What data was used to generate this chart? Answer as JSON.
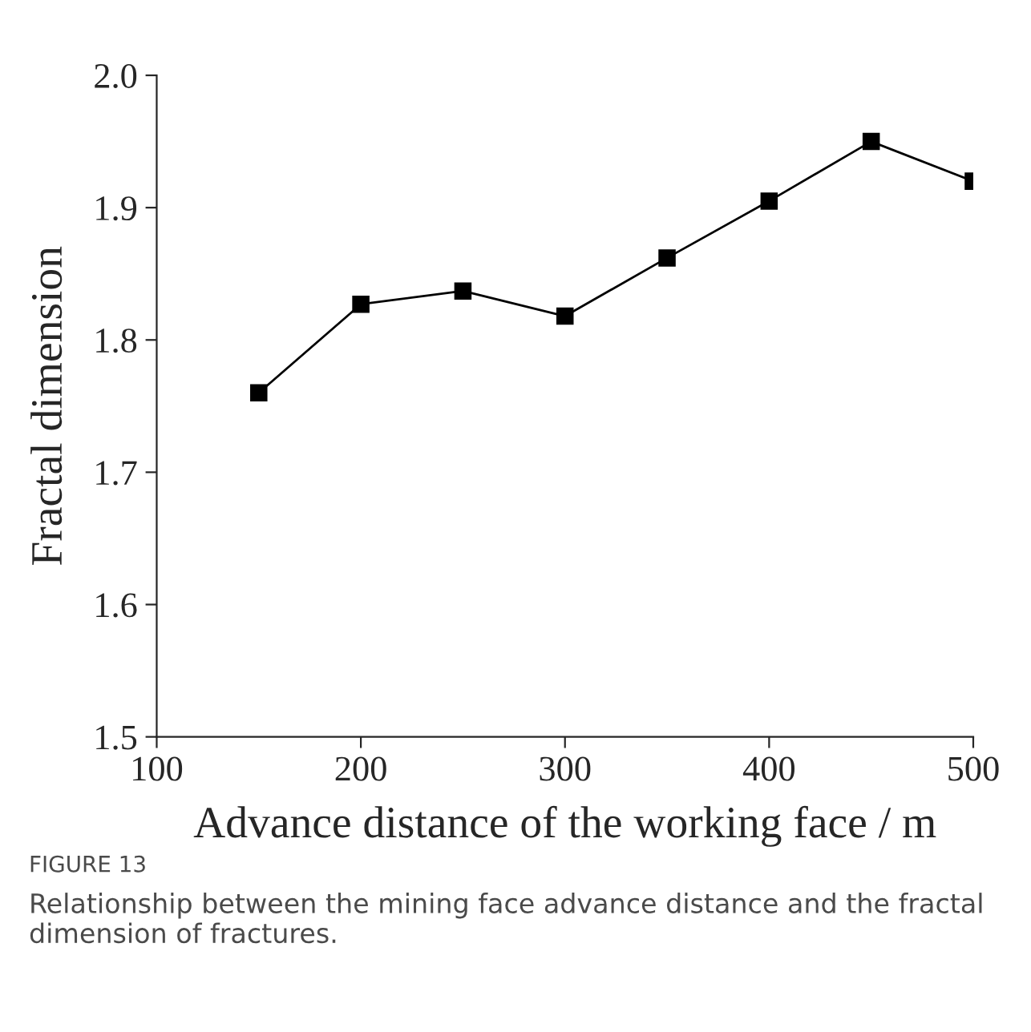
{
  "chart_data": {
    "type": "line",
    "xlabel": "Advance distance of the working face / m",
    "ylabel": "Fractal dimension",
    "x": [
      150,
      200,
      250,
      300,
      350,
      400,
      450,
      500
    ],
    "series": [
      {
        "color": "#000000",
        "values": [
          1.76,
          1.827,
          1.837,
          1.818,
          1.862,
          1.905,
          1.95,
          1.92
        ]
      }
    ],
    "xlim": [
      100,
      500
    ],
    "xticks": [
      100,
      200,
      300,
      400,
      500
    ],
    "ylim": [
      1.5,
      2.0
    ],
    "yticks": [
      {
        "value": 1.5,
        "label": "1.5"
      },
      {
        "value": 1.6,
        "label": "1.6"
      },
      {
        "value": 1.7,
        "label": "1.7"
      },
      {
        "value": 1.8,
        "label": "1.8"
      },
      {
        "value": 1.9,
        "label": "1.9"
      },
      {
        "value": 2.0,
        "label": "2.0"
      }
    ],
    "marker": "square",
    "line_style": "solid",
    "grid": false,
    "legend": false,
    "annotations": [
      "FIGURE 13",
      "Relationship between the mining face advance distance and the fractal dimension of fractures."
    ]
  }
}
